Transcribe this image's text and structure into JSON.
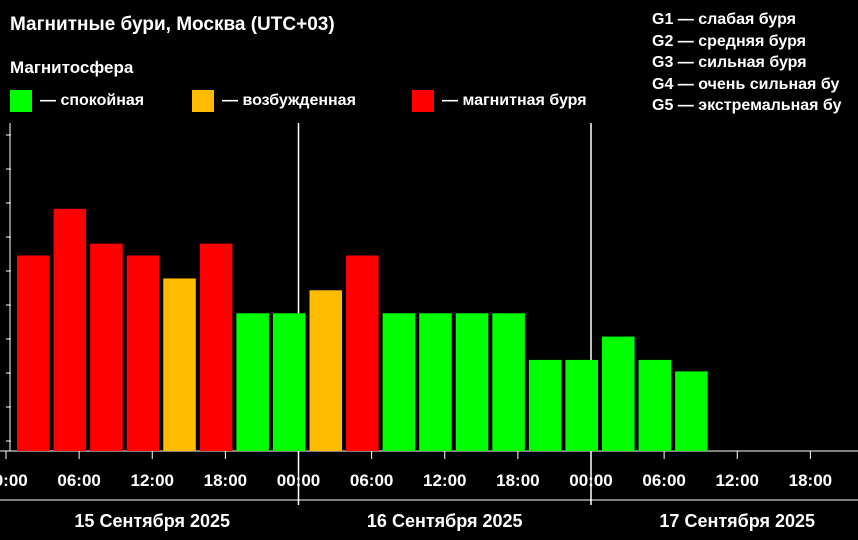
{
  "title": "Магнитные бури, Москва (UTC+03)",
  "subtitle": "Магнитосфера",
  "legend": [
    {
      "label": "— спокойная",
      "color": "#00ff00"
    },
    {
      "label": "— возбужденная",
      "color": "#ffbb00"
    },
    {
      "label": "— магнитная буря",
      "color": "#ff0000"
    }
  ],
  "g_scale": [
    "G1 — слабая буря",
    "G2 — средняя буря",
    "G3 — сильная буря",
    "G4 — очень сильная бу",
    "G5 — экстремальная бу"
  ],
  "chart_data": {
    "type": "bar",
    "title": "Магнитные бури, Москва (UTC+03)",
    "tick_labels": [
      "00:00",
      "06:00",
      "12:00",
      "18:00",
      "00:00",
      "06:00",
      "12:00",
      "18:00",
      "00:00",
      "06:00",
      "12:00",
      "18:00"
    ],
    "days": [
      "15 Сентября 2025",
      "16 Сентября 2025",
      "17 Сентября 2025"
    ],
    "ylim": [
      0,
      9
    ],
    "bars": [
      {
        "start": "15.09 00:00",
        "kp": 5.33,
        "status": "storm"
      },
      {
        "start": "15.09 03:00",
        "kp": 6.67,
        "status": "storm"
      },
      {
        "start": "15.09 06:00",
        "kp": 5.67,
        "status": "storm"
      },
      {
        "start": "15.09 09:00",
        "kp": 5.33,
        "status": "storm"
      },
      {
        "start": "15.09 12:00",
        "kp": 4.67,
        "status": "active"
      },
      {
        "start": "15.09 15:00",
        "kp": 5.67,
        "status": "storm"
      },
      {
        "start": "15.09 18:00",
        "kp": 3.67,
        "status": "quiet"
      },
      {
        "start": "15.09 21:00",
        "kp": 3.67,
        "status": "quiet"
      },
      {
        "start": "16.09 00:00",
        "kp": 4.33,
        "status": "active"
      },
      {
        "start": "16.09 03:00",
        "kp": 5.33,
        "status": "storm"
      },
      {
        "start": "16.09 06:00",
        "kp": 3.67,
        "status": "quiet"
      },
      {
        "start": "16.09 09:00",
        "kp": 3.67,
        "status": "quiet"
      },
      {
        "start": "16.09 12:00",
        "kp": 3.67,
        "status": "quiet"
      },
      {
        "start": "16.09 15:00",
        "kp": 3.67,
        "status": "quiet"
      },
      {
        "start": "16.09 18:00",
        "kp": 2.33,
        "status": "quiet"
      },
      {
        "start": "16.09 21:00",
        "kp": 2.33,
        "status": "quiet"
      },
      {
        "start": "17.09 00:00",
        "kp": 3.0,
        "status": "quiet"
      },
      {
        "start": "17.09 03:00",
        "kp": 2.33,
        "status": "quiet"
      },
      {
        "start": "17.09 06:00",
        "kp": 2.0,
        "status": "quiet"
      }
    ],
    "status_colors": {
      "quiet": "#00ff00",
      "active": "#ffbb00",
      "storm": "#ff0000"
    },
    "grid": false
  }
}
